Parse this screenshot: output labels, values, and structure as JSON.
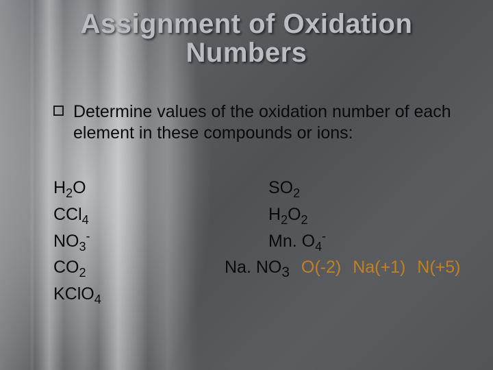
{
  "title_line1": "Assignment of Oxidation",
  "title_line2": "Numbers",
  "bullet": "Determine values of the oxidation number of each element in these compounds or ions:",
  "left_compounds": [
    {
      "base": "H",
      "sub1": "2",
      "tail": "O",
      "sub2": "",
      "sup": ""
    },
    {
      "base": "CCl",
      "sub1": "4",
      "tail": "",
      "sub2": "",
      "sup": ""
    },
    {
      "base": "NO",
      "sub1": "3",
      "tail": "",
      "sub2": "",
      "sup": "-"
    },
    {
      "base": "CO",
      "sub1": "2",
      "tail": "",
      "sub2": "",
      "sup": ""
    },
    {
      "base": "KClO",
      "sub1": "4",
      "tail": "",
      "sub2": "",
      "sup": ""
    }
  ],
  "right_compounds": [
    {
      "base": "SO",
      "sub1": "2",
      "tail": "",
      "sub2": "",
      "sup": ""
    },
    {
      "base": "H",
      "sub1": "2",
      "tail": "O",
      "sub2": "2",
      "sup": ""
    },
    {
      "base": "Mn. O",
      "sub1": "4",
      "tail": "",
      "sub2": "",
      "sup": "-"
    }
  ],
  "answer_row": {
    "compound_prefix": "Na. NO",
    "compound_sub": "3",
    "parts": [
      "O(-2)",
      "Na(+1)",
      "N(+5)"
    ]
  },
  "colors": {
    "title": "#b9bcc1",
    "body_text": "#0a0a0a",
    "answer_highlight": "#c2801f"
  },
  "font_sizes_pt": {
    "title": 30,
    "body": 19
  }
}
